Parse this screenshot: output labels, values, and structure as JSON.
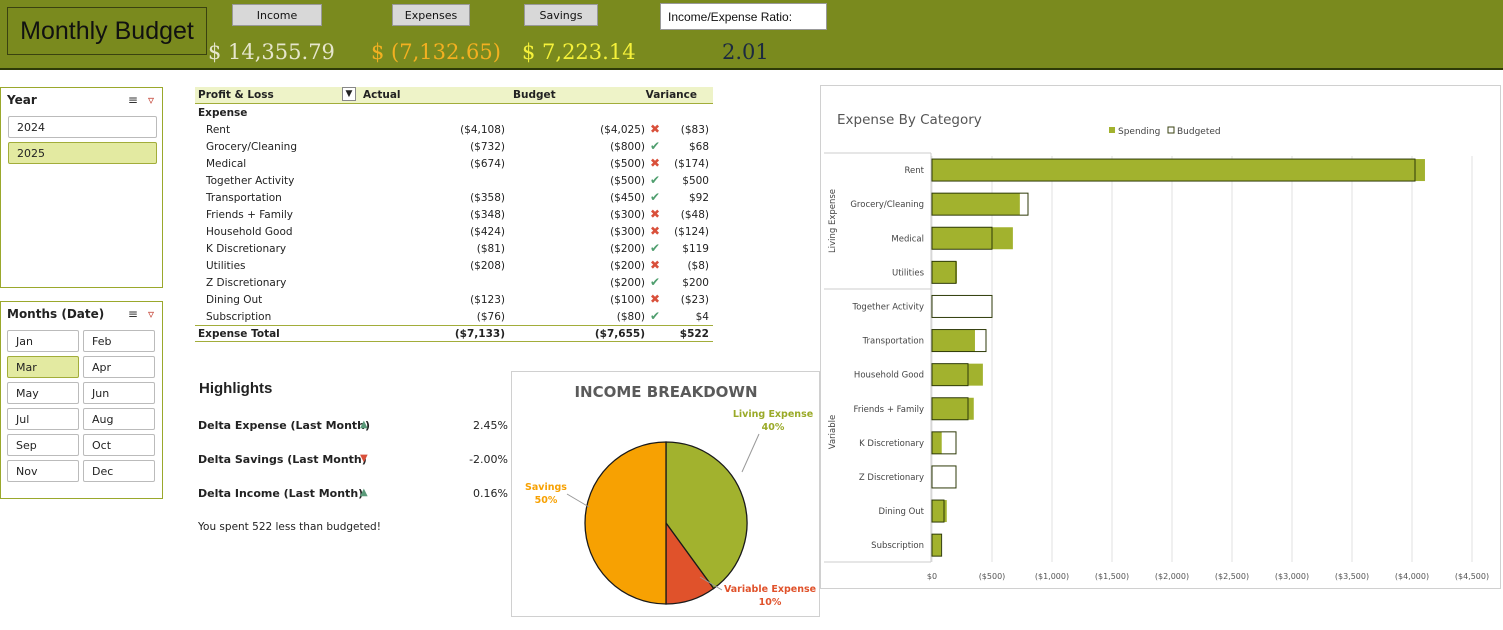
{
  "header": {
    "title": "Monthly Budget",
    "buttons": {
      "income": "Income",
      "expenses": "Expenses",
      "savings": "Savings"
    },
    "ratio_label": "Income/Expense Ratio:",
    "income_value": "$   14,355.79",
    "expense_value": "$  (7,132.65)",
    "savings_value": "$ 7,223.14",
    "ratio_value": "2.01"
  },
  "year_slicer": {
    "title": "Year",
    "items": [
      "2024",
      "2025"
    ],
    "selected": "2025"
  },
  "months_slicer": {
    "title": "Months (Date)",
    "items": [
      "Jan",
      "Feb",
      "Mar",
      "Apr",
      "May",
      "Jun",
      "Jul",
      "Aug",
      "Sep",
      "Oct",
      "Nov",
      "Dec"
    ],
    "selected": "Mar"
  },
  "pl_table": {
    "headers": {
      "name": "Profit & Loss",
      "actual": "Actual",
      "budget": "Budget",
      "variance": "Variance"
    },
    "section": "Expense",
    "rows": [
      {
        "name": "Rent",
        "actual": "($4,108)",
        "budget": "($4,025)",
        "status": "over",
        "variance": "($83)"
      },
      {
        "name": "Grocery/Cleaning",
        "actual": "($732)",
        "budget": "($800)",
        "status": "ok",
        "variance": "$68"
      },
      {
        "name": "Medical",
        "actual": "($674)",
        "budget": "($500)",
        "status": "over",
        "variance": "($174)"
      },
      {
        "name": "Together Activity",
        "actual": "",
        "budget": "($500)",
        "status": "ok",
        "variance": "$500"
      },
      {
        "name": "Transportation",
        "actual": "($358)",
        "budget": "($450)",
        "status": "ok",
        "variance": "$92"
      },
      {
        "name": "Friends + Family",
        "actual": "($348)",
        "budget": "($300)",
        "status": "over",
        "variance": "($48)"
      },
      {
        "name": "Household Good",
        "actual": "($424)",
        "budget": "($300)",
        "status": "over",
        "variance": "($124)"
      },
      {
        "name": "K Discretionary",
        "actual": "($81)",
        "budget": "($200)",
        "status": "ok",
        "variance": "$119"
      },
      {
        "name": "Utilities",
        "actual": "($208)",
        "budget": "($200)",
        "status": "over",
        "variance": "($8)"
      },
      {
        "name": "Z Discretionary",
        "actual": "",
        "budget": "($200)",
        "status": "ok",
        "variance": "$200"
      },
      {
        "name": "Dining Out",
        "actual": "($123)",
        "budget": "($100)",
        "status": "over",
        "variance": "($23)"
      },
      {
        "name": "Subscription",
        "actual": "($76)",
        "budget": "($80)",
        "status": "ok",
        "variance": "$4"
      }
    ],
    "total": {
      "name": "Expense Total",
      "actual": "($7,133)",
      "budget": "($7,655)",
      "variance": "$522"
    }
  },
  "highlights": {
    "title": "Highlights",
    "rows": [
      {
        "label": "Delta Expense (Last Month)",
        "direction": "up",
        "value": "2.45%"
      },
      {
        "label": "Delta Savings  (Last Month)",
        "direction": "down",
        "value": "-2.00%"
      },
      {
        "label": "Delta Income  (Last Month)",
        "direction": "up",
        "value": "0.16%"
      }
    ],
    "note": "You spent 522 less than budgeted!"
  },
  "chart_data": [
    {
      "type": "pie",
      "title": "INCOME BREAKDOWN",
      "slices": [
        {
          "label": "Living Expense",
          "value": 40,
          "display": "40%",
          "color": "#a2b22e"
        },
        {
          "label": "Variable Expense",
          "value": 10,
          "display": "10%",
          "color": "#e0522b"
        },
        {
          "label": "Savings",
          "value": 50,
          "display": "50%",
          "color": "#f7a102"
        }
      ]
    },
    {
      "type": "bar",
      "orientation": "horizontal",
      "title": "Expense By Category",
      "legend": [
        "Spending",
        "Budgeted"
      ],
      "legend_position": "top",
      "groups": [
        {
          "label": "Living Expense",
          "categories": [
            "Rent",
            "Grocery/Cleaning",
            "Medical",
            "Utilities"
          ]
        },
        {
          "label": "Variable",
          "categories": [
            "Together Activity",
            "Transportation",
            "Household Good",
            "Friends + Family",
            "K Discretionary",
            "Z Discretionary",
            "Dining Out",
            "Subscription"
          ]
        }
      ],
      "categories": [
        "Rent",
        "Grocery/Cleaning",
        "Medical",
        "Utilities",
        "Together Activity",
        "Transportation",
        "Household Good",
        "Friends + Family",
        "K Discretionary",
        "Z Discretionary",
        "Dining Out",
        "Subscription"
      ],
      "series": [
        {
          "name": "Spending",
          "color": "#a2b22e",
          "values": [
            4108,
            732,
            674,
            208,
            0,
            358,
            424,
            348,
            81,
            0,
            123,
            76
          ]
        },
        {
          "name": "Budgeted",
          "color": "#ffffff",
          "values": [
            4025,
            800,
            500,
            200,
            500,
            450,
            300,
            300,
            200,
            200,
            100,
            80
          ]
        }
      ],
      "xlim": [
        0,
        4500
      ],
      "x_ticks": [
        "$0",
        "($500)",
        "($1,000)",
        "($1,500)",
        "($2,000)",
        "($2,500)",
        "($3,000)",
        "($3,500)",
        "($4,000)",
        "($4,500)"
      ],
      "grid": true
    }
  ]
}
